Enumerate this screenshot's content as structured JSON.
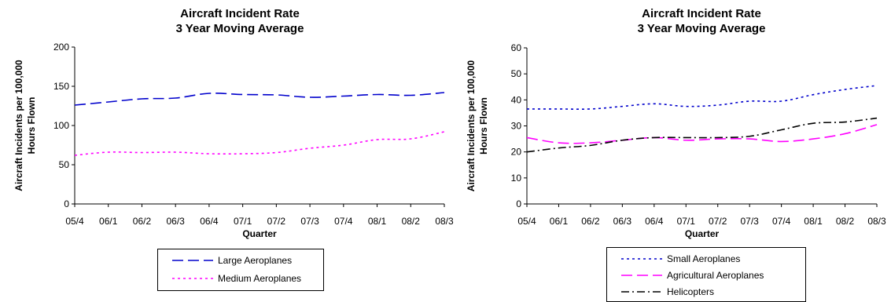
{
  "chart_data": [
    {
      "type": "line",
      "title": [
        "Aircraft Incident Rate",
        "3 Year Moving Average"
      ],
      "xlabel": "Quarter",
      "ylabel": [
        "Aircraft Incidents per 100,000",
        "Hours Flown"
      ],
      "categories": [
        "05/4",
        "06/1",
        "06/2",
        "06/3",
        "06/4",
        "07/1",
        "07/2",
        "07/3",
        "07/4",
        "08/1",
        "08/2",
        "08/3"
      ],
      "ylim": [
        0,
        200
      ],
      "yticks": [
        "0",
        "50",
        "100",
        "150",
        "200"
      ],
      "grid": false,
      "legend": "bottom",
      "series": [
        {
          "name": "Large Aeroplanes",
          "color": "#0000cc",
          "dash": "long-dash",
          "values": [
            126,
            130,
            134,
            135,
            141,
            139.5,
            139,
            136,
            137.5,
            139.5,
            138.5,
            142
          ]
        },
        {
          "name": "Medium Aeroplanes",
          "color": "#ff00ff",
          "dash": "dotted",
          "values": [
            62,
            66,
            65.5,
            66,
            64,
            64,
            65.5,
            71,
            75,
            82,
            83,
            92
          ]
        }
      ]
    },
    {
      "type": "line",
      "title": [
        "Aircraft Incident Rate",
        "3 Year Moving Average"
      ],
      "xlabel": "Quarter",
      "ylabel": [
        "Aircraft Incidents per 100,000",
        "Hours Flown"
      ],
      "categories": [
        "05/4",
        "06/1",
        "06/2",
        "06/3",
        "06/4",
        "07/1",
        "07/2",
        "07/3",
        "07/4",
        "08/1",
        "08/2",
        "08/3"
      ],
      "ylim": [
        0,
        60
      ],
      "yticks": [
        "0",
        "10",
        "20",
        "30",
        "40",
        "50",
        "60"
      ],
      "grid": false,
      "legend": "bottom",
      "series": [
        {
          "name": "Small Aeroplanes",
          "color": "#0000cc",
          "dash": "dotted",
          "values": [
            36.5,
            36.5,
            36.5,
            37.5,
            38.5,
            37.5,
            38,
            39.5,
            39.5,
            42,
            44,
            45.5
          ]
        },
        {
          "name": "Agricultural Aeroplanes",
          "color": "#ff00ff",
          "dash": "long-dash",
          "values": [
            25.5,
            23.5,
            23.5,
            24.5,
            25.5,
            24.5,
            25,
            25,
            24,
            25,
            27,
            30.5
          ]
        },
        {
          "name": "Helicopters",
          "color": "#000000",
          "dash": "dash-dot",
          "values": [
            20,
            21.5,
            22.5,
            24.5,
            25.5,
            25.5,
            25.5,
            26,
            28.5,
            31,
            31.5,
            33
          ]
        }
      ]
    }
  ]
}
